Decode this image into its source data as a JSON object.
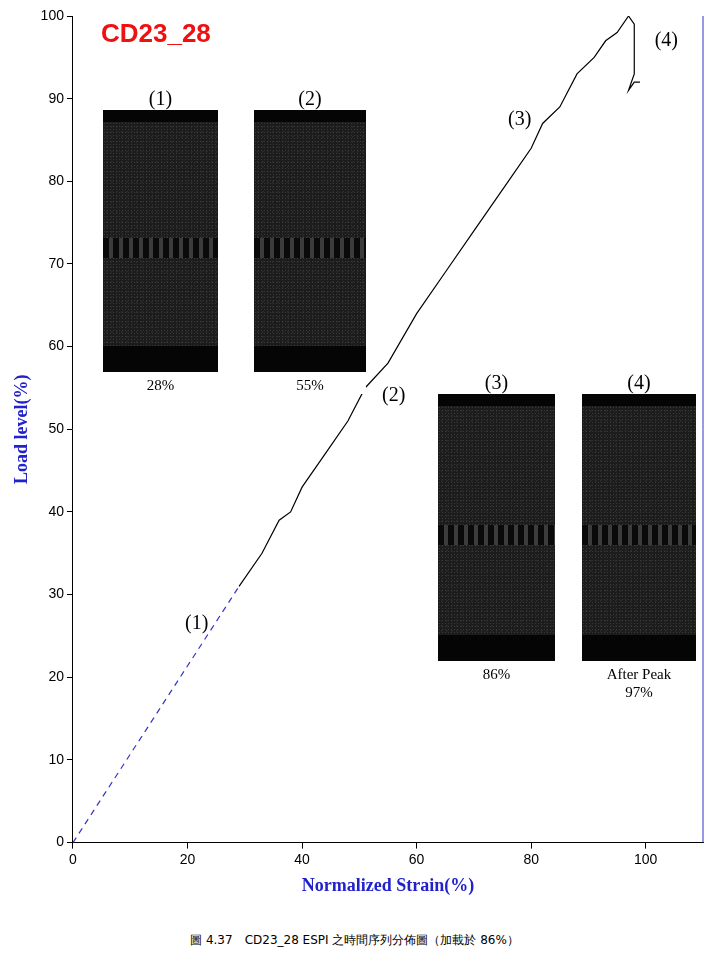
{
  "chart_data": {
    "type": "line",
    "title": "CD23_28",
    "x_label": "Normalized Strain(%)",
    "y_label": "Load level(%)",
    "xlim": [
      0,
      110
    ],
    "xticks": [
      0,
      20,
      40,
      60,
      80,
      100
    ],
    "ylim": [
      0,
      100
    ],
    "yticks": [
      0,
      10,
      20,
      30,
      40,
      50,
      60,
      70,
      80,
      90,
      100
    ],
    "grid": false,
    "series": [
      {
        "color": "#3333cc",
        "line_style": "dashed",
        "x": [
          0,
          29
        ],
        "values": [
          0,
          31
        ]
      },
      {
        "color": "#000000",
        "line_style": "solid",
        "x": [
          29,
          33,
          36,
          38,
          40,
          44,
          48,
          51,
          55,
          60,
          65,
          70,
          76,
          80,
          82,
          85,
          88,
          91,
          93,
          95,
          97,
          98,
          98,
          97,
          98,
          99
        ],
        "values": [
          31,
          35,
          39,
          40,
          43,
          47,
          51,
          55,
          58,
          64,
          69,
          74,
          80,
          84,
          87,
          89,
          93,
          95,
          97,
          98,
          100,
          99,
          93,
          91,
          92,
          92
        ]
      }
    ],
    "annotations": [
      {
        "text": "(1)",
        "x": 21.6,
        "y": 26.5
      },
      {
        "text": "(2)",
        "x": 56,
        "y": 54
      },
      {
        "text": "(3)",
        "x": 78,
        "y": 87.4
      },
      {
        "text": "(4)",
        "x": 103.6,
        "y": 97
      }
    ]
  },
  "insets": [
    {
      "label": "(1)",
      "caption": [
        "28%"
      ]
    },
    {
      "label": "(2)",
      "caption": [
        "55%"
      ]
    },
    {
      "label": "(3)",
      "caption": [
        "86%"
      ]
    },
    {
      "label": "(4)",
      "caption": [
        "After Peak",
        "97%"
      ]
    }
  ],
  "figure_caption": "圖 4.37　CD23_28 ESPI 之時間序列分佈圖（加載於 86%）"
}
